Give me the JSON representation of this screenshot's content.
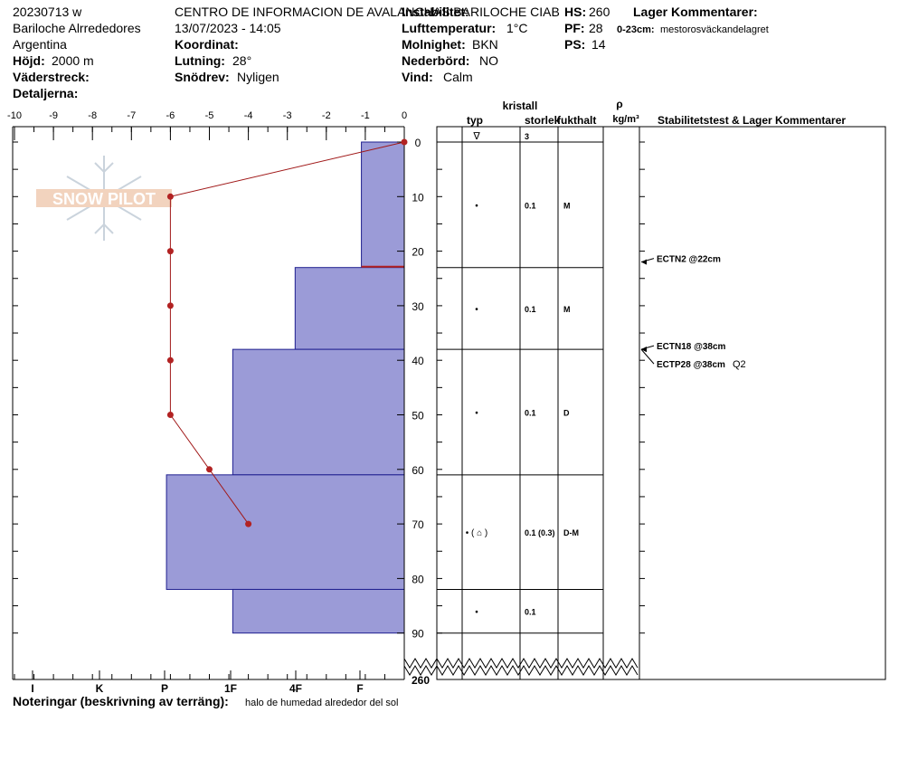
{
  "header": {
    "id": "20230713 w",
    "location": "Bariloche Alrrededores",
    "country": "Argentina",
    "elevation_label": "Höjd:",
    "elevation_value": "2000 m",
    "aspect_label": "Väderstreck:",
    "details_label": "Detaljerna:",
    "org_title": "CENTRO DE INFORMACION DE AVALANCHAS BARILOCHE CIAB",
    "datetime": "13/07/2023 - 14:05",
    "coord_label": "Koordinat:",
    "slope_label": "Lutning:",
    "slope_value": "28°",
    "drift_label": "Snödrev:",
    "drift_value": "Nyligen",
    "stability_label": "Instabilitet:",
    "airtemp_label": "Lufttemperatur:",
    "airtemp_value": "1°C",
    "sky_label": "Molnighet:",
    "sky_value": "BKN",
    "precip_label": "Nederbörd:",
    "precip_value": "NO",
    "wind_label": "Vind:",
    "wind_value": "Calm",
    "hs_label": "HS:",
    "hs_value": "260",
    "pf_label": "PF:",
    "pf_value": "28",
    "ps_label": "PS:",
    "ps_value": "14",
    "layer_comments_title": "Lager Kommentarer:",
    "layer_comment_depth": "0-23cm:",
    "layer_comment_text": "mestorosväckandelagret"
  },
  "columns": {
    "crystal": "kristall",
    "type": "typ",
    "size": "storlek",
    "moisture": "fukthalt",
    "rho": "ρ",
    "rho_unit": "kg/m³",
    "stability": "Stabilitetstest & Lager Kommentarer",
    "surface_symbol": "∇",
    "surface_size": "3"
  },
  "notes": {
    "label": "Noteringar (beskrivning av terräng):",
    "text": "halo de humedad alrededor del sol"
  },
  "logo_text": "SNOW PILOT",
  "chart_data": {
    "type": "snow-profile",
    "temperature_axis": {
      "ticks": [
        "-10",
        "-9",
        "-8",
        "-7",
        "-6",
        "-5",
        "-4",
        "-3",
        "-2",
        "-1",
        "0"
      ],
      "range": [
        -10,
        0
      ]
    },
    "depth_axis": {
      "ticks": [
        "0",
        "10",
        "20",
        "30",
        "40",
        "50",
        "60",
        "70",
        "80",
        "90"
      ],
      "range": [
        0,
        92
      ],
      "bottom_label": "260"
    },
    "hardness_axis": {
      "ticks": [
        "I",
        "K",
        "P",
        "1F",
        "4F",
        "F"
      ]
    },
    "temperature_profile": [
      {
        "depth": 0,
        "temp": 0
      },
      {
        "depth": 10,
        "temp": -6
      },
      {
        "depth": 20,
        "temp": -6
      },
      {
        "depth": 30,
        "temp": -6
      },
      {
        "depth": 40,
        "temp": -6
      },
      {
        "depth": 50,
        "temp": -6
      },
      {
        "depth": 60,
        "temp": -5
      },
      {
        "depth": 70,
        "temp": -4
      }
    ],
    "layers": [
      {
        "top": 0,
        "bottom": 23,
        "hardness": -1.1,
        "size": "0.1",
        "moisture": "M",
        "form": "•"
      },
      {
        "top": 23,
        "bottom": 38,
        "hardness": -2.8,
        "size": "0.1",
        "moisture": "M",
        "form": "•"
      },
      {
        "top": 38,
        "bottom": 61,
        "hardness": -4.4,
        "size": "0.1",
        "moisture": "D",
        "form": "•"
      },
      {
        "top": 61,
        "bottom": 82,
        "hardness": -6.1,
        "size": "0.1 (0.3)",
        "moisture": "D-M",
        "form": "• ( ⌂ )"
      },
      {
        "top": 82,
        "bottom": 90,
        "hardness": -4.4,
        "size": "0.1",
        "moisture": "",
        "form": "•"
      }
    ],
    "tests": [
      {
        "depth": 22,
        "label": "ECTN2 @22cm",
        "extra": ""
      },
      {
        "depth": 38,
        "label": "ECTN18 @38cm",
        "extra": ""
      },
      {
        "depth": 38,
        "label": "ECTP28 @38cm",
        "extra": "Q2"
      }
    ]
  }
}
